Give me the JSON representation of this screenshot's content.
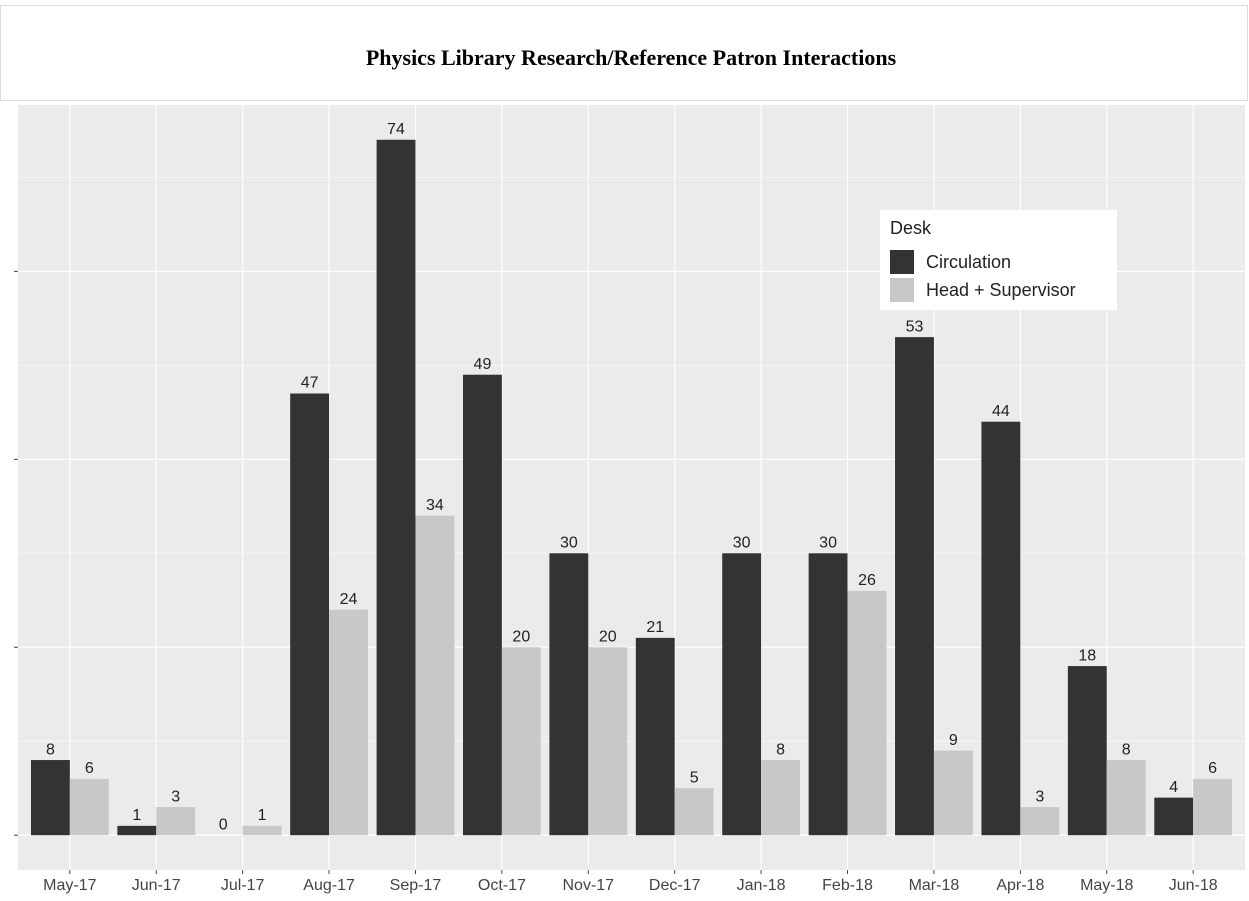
{
  "chart_data": {
    "type": "bar",
    "title": "Physics Library Research/Reference Patron Interactions",
    "categories": [
      "May-17",
      "Jun-17",
      "Jul-17",
      "Aug-17",
      "Sep-17",
      "Oct-17",
      "Nov-17",
      "Dec-17",
      "Jan-18",
      "Feb-18",
      "Mar-18",
      "Apr-18",
      "May-18",
      "Jun-18"
    ],
    "series": [
      {
        "name": "Circulation",
        "color": "#333333",
        "values": [
          8,
          1,
          0,
          47,
          74,
          49,
          30,
          21,
          30,
          30,
          53,
          44,
          18,
          4
        ]
      },
      {
        "name": "Head + Supervisor",
        "color": "#c8c8c8",
        "values": [
          6,
          3,
          1,
          24,
          34,
          20,
          20,
          5,
          8,
          26,
          9,
          3,
          8,
          6
        ]
      }
    ],
    "legend_title": "Desk",
    "legend_position": "top-right",
    "ylim": [
      -3.7,
      77.7
    ],
    "yticks": [
      0,
      20,
      40,
      60
    ],
    "grid": true
  }
}
